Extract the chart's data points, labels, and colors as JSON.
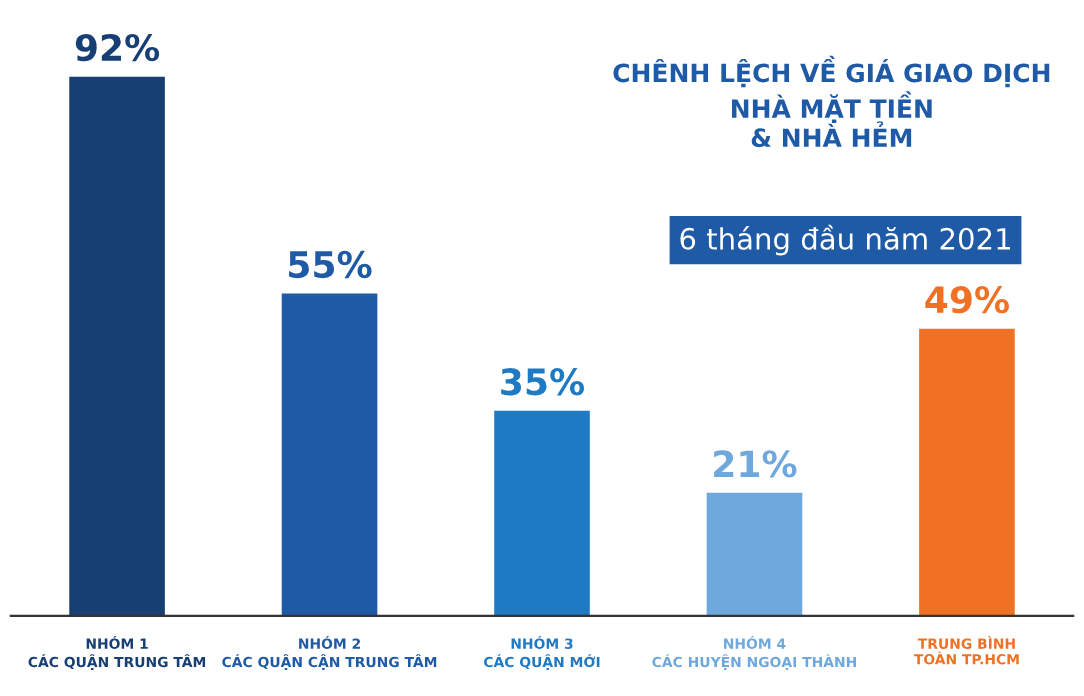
{
  "chart_data": {
    "type": "bar",
    "title": "CHÊNH LỆCH VỀ GIÁ GIAO DỊCH\nNHÀ MẶT TIỀN\n& NHÀ HẺM",
    "subtitle": "6 tháng đầu năm 2021",
    "categories": [
      "NHÓM 1\nCÁC QUẬN TRUNG TÂM",
      "NHÓM 2\nCÁC QUẬN CẬN TRUNG TÂM",
      "NHÓM 3\nCÁC QUẬN MỚI",
      "NHÓM 4\nCÁC HUYỆN NGOẠI THÀNH",
      "TRUNG BÌNH\nTOÀN TP.HCM"
    ],
    "values": [
      92,
      55,
      35,
      21,
      49
    ],
    "value_labels": [
      "92%",
      "55%",
      "35%",
      "21%",
      "49%"
    ],
    "colors": [
      "#173f73",
      "#1f5aa6",
      "#1f7ac4",
      "#6fa8dc",
      "#f07024"
    ],
    "grid": false,
    "legend": false
  }
}
